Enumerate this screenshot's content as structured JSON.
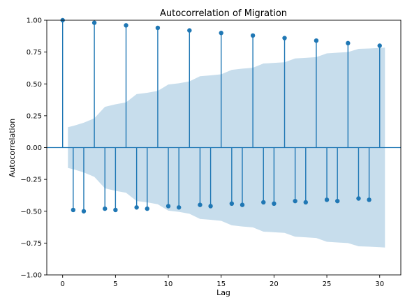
{
  "chart_data": {
    "type": "stem",
    "title": "Autocorrelation of Migration",
    "xlabel": "Lag",
    "ylabel": "Autocorrelation",
    "xlim": [
      -1.5,
      32
    ],
    "ylim": [
      -1.0,
      1.0
    ],
    "xticks": [
      0,
      5,
      10,
      15,
      20,
      25,
      30
    ],
    "xtick_labels": [
      "0",
      "5",
      "10",
      "15",
      "20",
      "25",
      "30"
    ],
    "yticks": [
      -1.0,
      -0.75,
      -0.5,
      -0.25,
      0.0,
      0.25,
      0.5,
      0.75,
      1.0
    ],
    "ytick_labels": [
      "−1.00",
      "−0.75",
      "−0.50",
      "−0.25",
      "0.00",
      "0.25",
      "0.50",
      "0.75",
      "1.00"
    ],
    "grid": false,
    "colors": {
      "stem": "#1f77b4",
      "confidence_band": "#1f77b4"
    },
    "confidence_band_opacity": 0.25,
    "series": [
      {
        "lags": [
          0,
          1,
          2,
          3,
          4,
          5,
          6,
          7,
          8,
          9,
          10,
          11,
          12,
          13,
          14,
          15,
          16,
          17,
          18,
          19,
          20,
          21,
          22,
          23,
          24,
          25,
          26,
          27,
          28,
          29,
          30
        ],
        "values": [
          1.0,
          -0.49,
          -0.5,
          0.98,
          -0.48,
          -0.49,
          0.96,
          -0.47,
          -0.48,
          0.94,
          -0.46,
          -0.47,
          0.92,
          -0.45,
          -0.46,
          0.9,
          -0.44,
          -0.45,
          0.88,
          -0.43,
          -0.44,
          0.86,
          -0.42,
          -0.43,
          0.84,
          -0.41,
          -0.42,
          0.82,
          -0.4,
          -0.41,
          0.8
        ]
      }
    ],
    "confidence_band": {
      "lags": [
        0.5,
        1,
        2,
        3,
        4,
        5,
        6,
        7,
        8,
        9,
        10,
        11,
        12,
        13,
        14,
        15,
        16,
        17,
        18,
        19,
        20,
        21,
        22,
        23,
        24,
        25,
        26,
        27,
        28,
        29,
        30,
        30.5
      ],
      "upper": [
        0.16,
        0.17,
        0.195,
        0.23,
        0.32,
        0.34,
        0.355,
        0.42,
        0.43,
        0.445,
        0.495,
        0.505,
        0.52,
        0.56,
        0.567,
        0.575,
        0.61,
        0.62,
        0.627,
        0.66,
        0.665,
        0.67,
        0.7,
        0.705,
        0.71,
        0.74,
        0.745,
        0.75,
        0.775,
        0.778,
        0.782,
        0.785
      ],
      "lower": [
        -0.16,
        -0.17,
        -0.195,
        -0.23,
        -0.32,
        -0.34,
        -0.355,
        -0.42,
        -0.43,
        -0.445,
        -0.495,
        -0.505,
        -0.52,
        -0.56,
        -0.567,
        -0.575,
        -0.61,
        -0.62,
        -0.627,
        -0.66,
        -0.665,
        -0.67,
        -0.7,
        -0.705,
        -0.71,
        -0.74,
        -0.745,
        -0.75,
        -0.775,
        -0.778,
        -0.782,
        -0.785
      ]
    }
  }
}
